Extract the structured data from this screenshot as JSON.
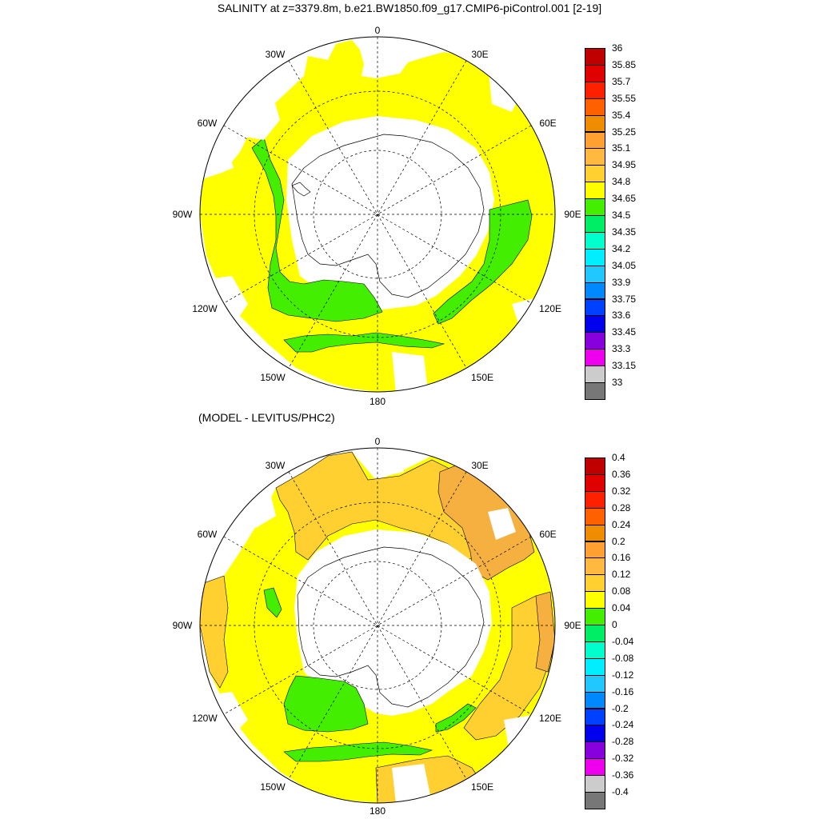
{
  "page": {
    "title": "SALINITY at z=3379.8m, b.e21.BW1850.f09_g17.CMIP6-piControl.001 [2-19]",
    "subtitle": "(MODEL - LEVITUS/PHC2)"
  },
  "map_labels": {
    "lon_0": "0",
    "lon_30e": "30E",
    "lon_60e": "60E",
    "lon_90e": "90E",
    "lon_120e": "120E",
    "lon_150e": "150E",
    "lon_180": "180",
    "lon_150w": "150W",
    "lon_120w": "120W",
    "lon_90w": "90W",
    "lon_60w": "60W",
    "lon_30w": "30W"
  },
  "colorbar_top": {
    "labels": [
      "36",
      "35.85",
      "35.7",
      "35.55",
      "35.4",
      "35.25",
      "35.1",
      "34.95",
      "34.8",
      "34.65",
      "34.5",
      "34.35",
      "34.2",
      "34.05",
      "33.9",
      "33.75",
      "33.6",
      "33.45",
      "33.3",
      "33.15",
      "33"
    ],
    "colors": [
      "#c00000",
      "#e00000",
      "#ff2000",
      "#ff6000",
      "#f08c00",
      "#ffa030",
      "#ffb840",
      "#ffd030",
      "#ffff00",
      "#44ee00",
      "#00ee66",
      "#00ffcc",
      "#00eeff",
      "#20c8ff",
      "#0088ff",
      "#0040ff",
      "#0000ee",
      "#8800dd",
      "#ee00ee",
      "#cccccc",
      "#777777"
    ]
  },
  "colorbar_bottom": {
    "labels": [
      "0.4",
      "0.36",
      "0.32",
      "0.28",
      "0.24",
      "0.2",
      "0.16",
      "0.12",
      "0.08",
      "0.04",
      "0",
      "-0.04",
      "-0.08",
      "-0.12",
      "-0.16",
      "-0.2",
      "-0.24",
      "-0.28",
      "-0.32",
      "-0.36",
      "-0.4"
    ],
    "colors": [
      "#c00000",
      "#e00000",
      "#ff2000",
      "#ff6000",
      "#f08c00",
      "#ffa030",
      "#ffb840",
      "#ffd030",
      "#ffff00",
      "#44ee00",
      "#00ee66",
      "#00ffcc",
      "#00eeff",
      "#20c8ff",
      "#0088ff",
      "#0040ff",
      "#0000ee",
      "#8800dd",
      "#ee00ee",
      "#cccccc",
      "#777777"
    ]
  },
  "colors": {
    "yellow": "#ffff00",
    "green": "#44ee00",
    "gold": "#ffd030",
    "orange": "#f5b040",
    "land": "#ffffff"
  }
}
